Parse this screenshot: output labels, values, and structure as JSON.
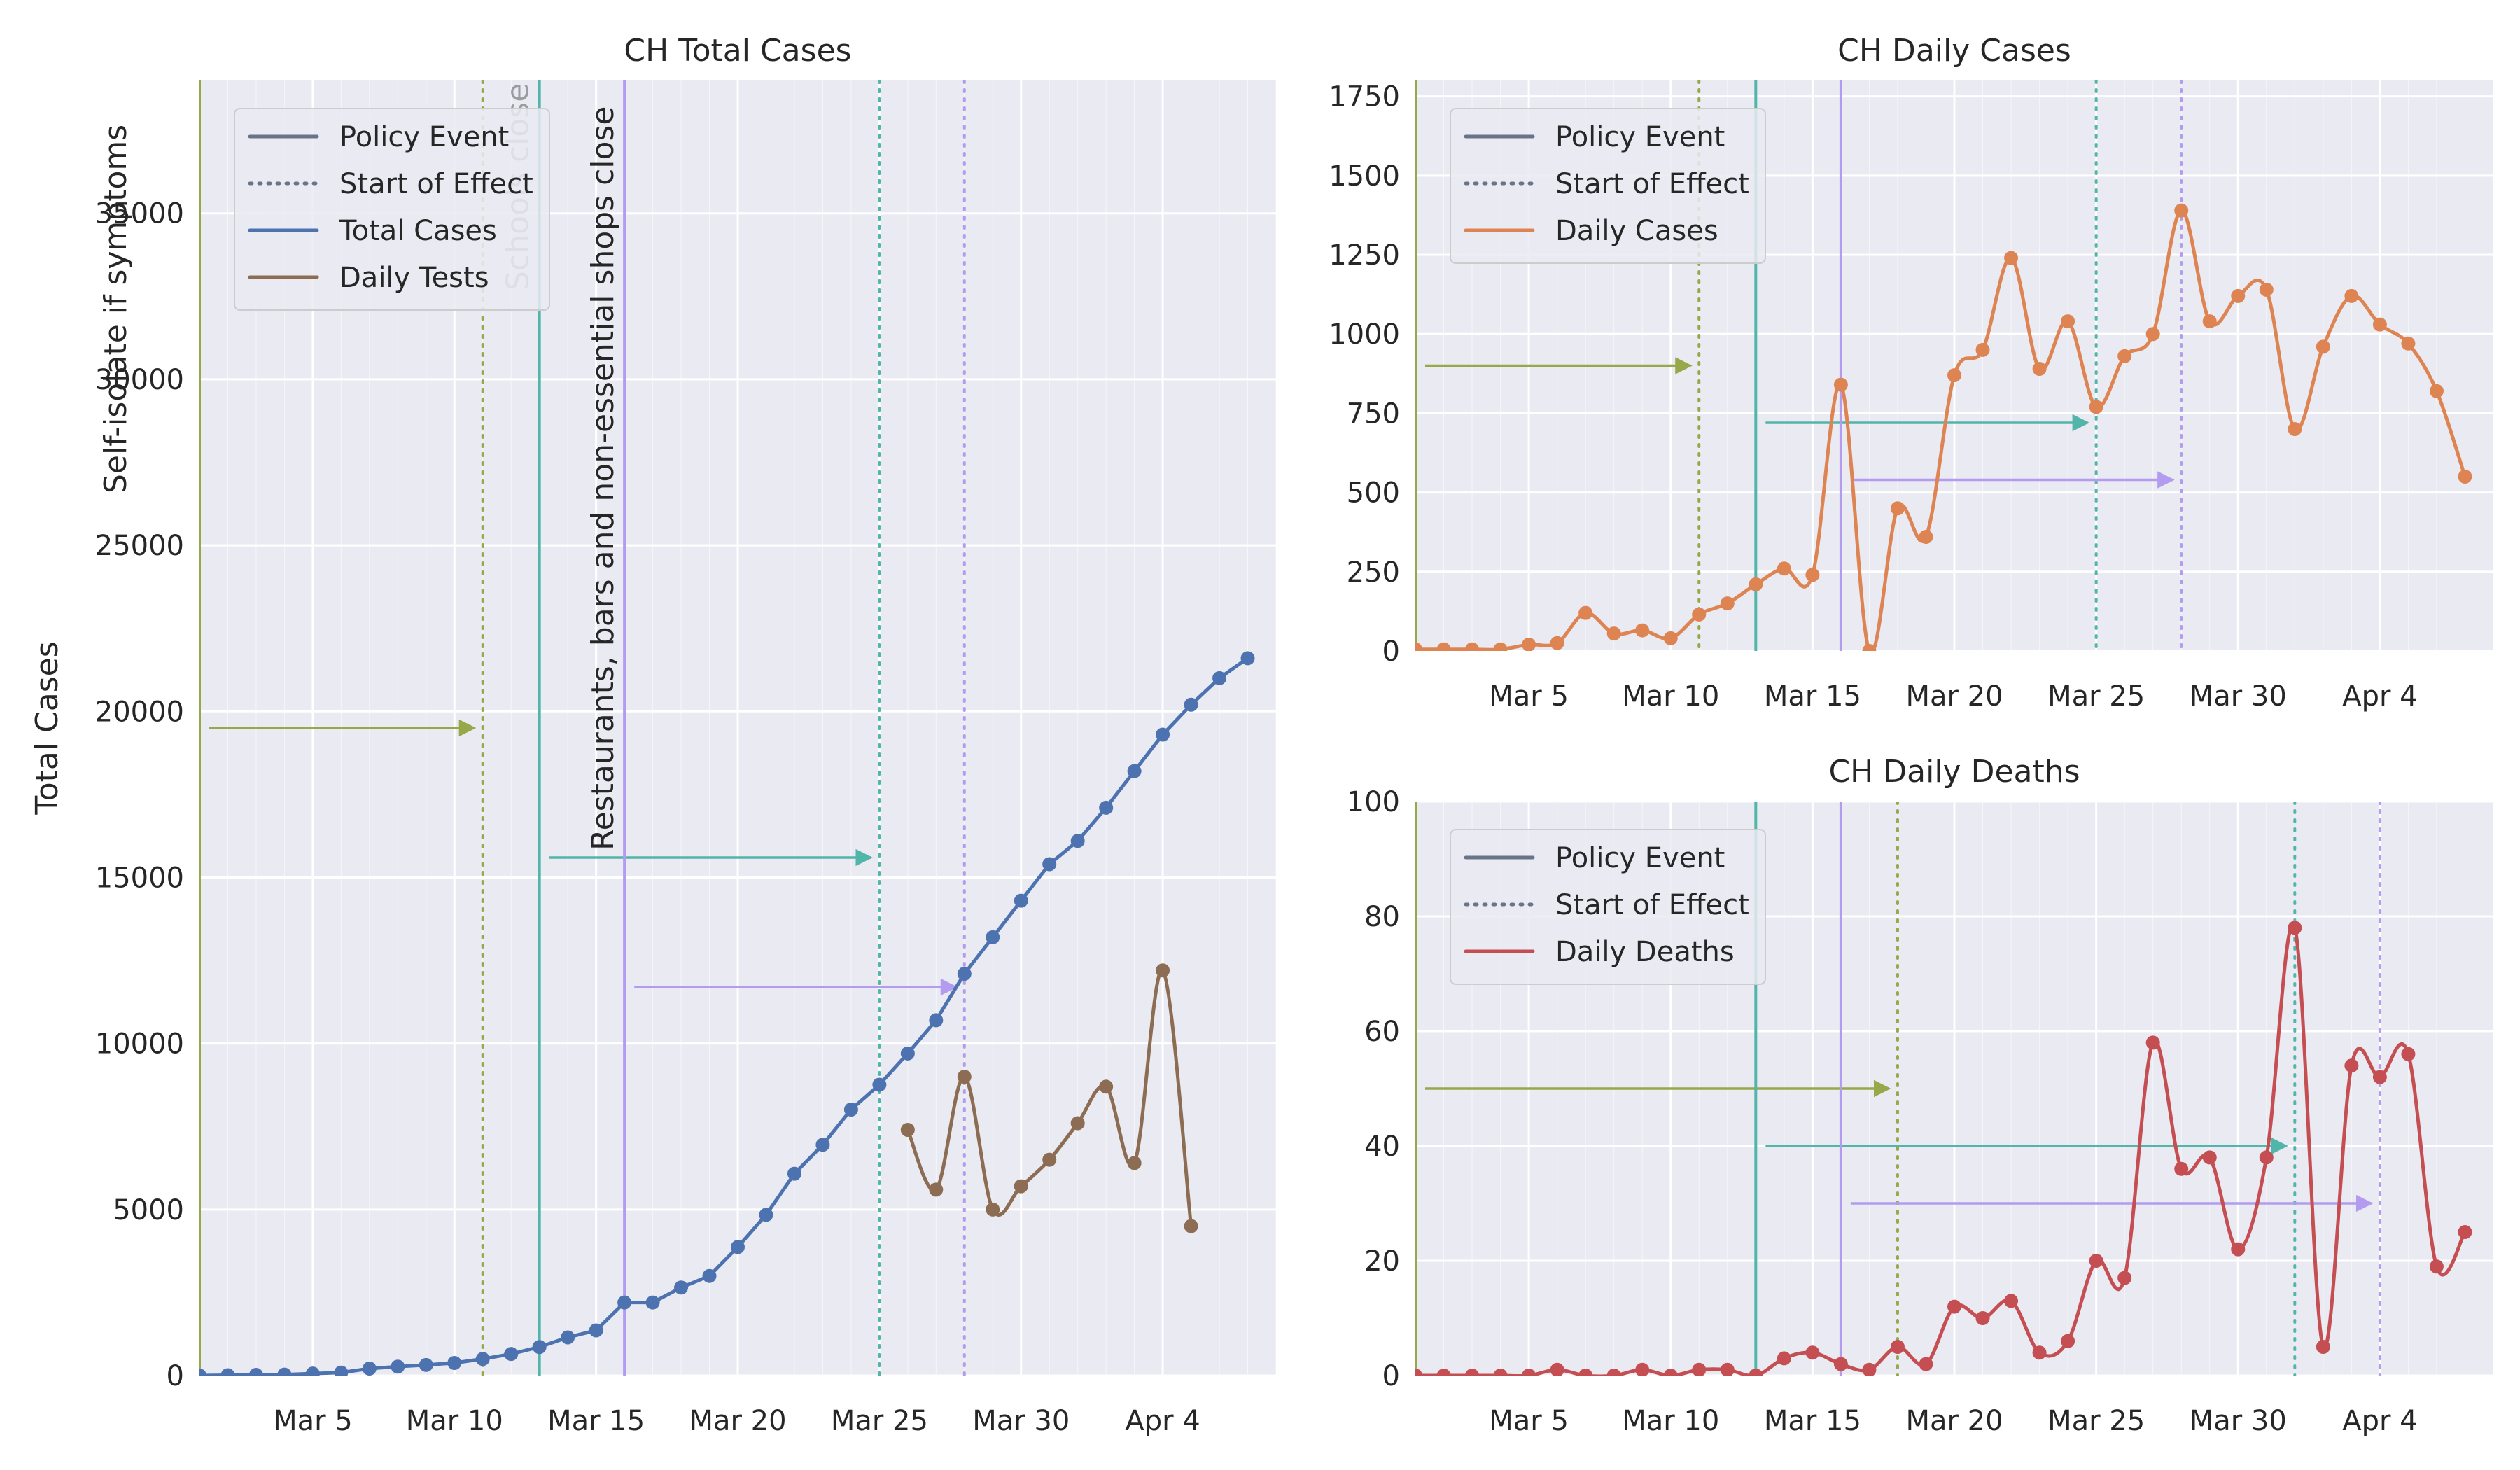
{
  "colors": {
    "policy_green": "#97a84b",
    "policy_teal": "#52b5aa",
    "policy_purple": "#b39cf0",
    "total_cases": "#4c72b0",
    "daily_tests": "#8c6d53",
    "daily_cases": "#dd8452",
    "daily_deaths": "#c44e52",
    "axes_bg": "#eaeaf2",
    "legend_gray": "#6a7489"
  },
  "chart_data": [
    {
      "type": "line",
      "title": "CH Total Cases",
      "ylabel": "Total Cases",
      "ylim": [
        0,
        39000
      ],
      "yticks": [
        0,
        5000,
        10000,
        15000,
        20000,
        25000,
        30000,
        35000
      ],
      "xrange": [
        "2020-03-01",
        "2020-04-08"
      ],
      "xticks": [
        "Mar 5",
        "Mar 10",
        "Mar 15",
        "Mar 20",
        "Mar 25",
        "Mar 30",
        "Apr 4"
      ],
      "legend": {
        "placement": "upper-left",
        "entries": [
          "Policy Event",
          "Start of Effect",
          "Total Cases",
          "Daily Tests"
        ]
      },
      "policy_events": [
        {
          "label": "Self-isolate if symptoms",
          "event_date": "2020-03-01",
          "effect_date": "2020-03-11",
          "color_key": "policy_green",
          "arrow_y": 19500
        },
        {
          "label": "Schools close",
          "event_date": "2020-03-13",
          "effect_date": "2020-03-25",
          "color_key": "policy_teal",
          "arrow_y": 15600
        },
        {
          "label": "Restaurants, bars and non-essential shops close",
          "event_date": "2020-03-16",
          "effect_date": "2020-03-28",
          "color_key": "policy_purple",
          "arrow_y": 11700
        }
      ],
      "series": [
        {
          "name": "Total Cases",
          "color_key": "total_cases",
          "x": [
            "2020-03-01",
            "2020-03-02",
            "2020-03-03",
            "2020-03-04",
            "2020-03-05",
            "2020-03-06",
            "2020-03-07",
            "2020-03-08",
            "2020-03-09",
            "2020-03-10",
            "2020-03-11",
            "2020-03-12",
            "2020-03-13",
            "2020-03-14",
            "2020-03-15",
            "2020-03-16",
            "2020-03-17",
            "2020-03-18",
            "2020-03-19",
            "2020-03-20",
            "2020-03-21",
            "2020-03-22",
            "2020-03-23",
            "2020-03-24",
            "2020-03-25",
            "2020-03-26",
            "2020-03-27",
            "2020-03-28",
            "2020-03-29",
            "2020-03-30",
            "2020-03-31",
            "2020-04-01",
            "2020-04-02",
            "2020-04-03",
            "2020-04-04",
            "2020-04-05",
            "2020-04-06",
            "2020-04-07"
          ],
          "values": [
            0,
            10,
            20,
            30,
            60,
            90,
            210,
            270,
            320,
            380,
            500,
            650,
            860,
            1150,
            1360,
            2200,
            2200,
            2650,
            3000,
            3870,
            4840,
            6080,
            6950,
            8010,
            8760,
            9700,
            10700,
            12100,
            13200,
            14300,
            15400,
            16100,
            17100,
            18200,
            19300,
            20200,
            21000,
            21600
          ]
        },
        {
          "name": "Daily Tests",
          "color_key": "daily_tests",
          "smooth": true,
          "x": [
            "2020-03-26",
            "2020-03-27",
            "2020-03-28",
            "2020-03-29",
            "2020-03-30",
            "2020-03-31",
            "2020-04-01",
            "2020-04-02",
            "2020-04-03",
            "2020-04-04",
            "2020-04-05"
          ],
          "values": [
            7400,
            5600,
            9000,
            5000,
            5700,
            6500,
            7600,
            8700,
            6400,
            12200,
            4500
          ]
        }
      ]
    },
    {
      "type": "line",
      "title": "CH Daily Cases",
      "ylabel": "",
      "ylim": [
        0,
        1800
      ],
      "yticks": [
        0,
        250,
        500,
        750,
        1000,
        1250,
        1500,
        1750
      ],
      "xrange": [
        "2020-03-01",
        "2020-04-08"
      ],
      "xticks": [
        "Mar 5",
        "Mar 10",
        "Mar 15",
        "Mar 20",
        "Mar 25",
        "Mar 30",
        "Apr 4"
      ],
      "legend": {
        "placement": "upper-left",
        "entries": [
          "Policy Event",
          "Start of Effect",
          "Daily Cases"
        ]
      },
      "policy_events": [
        {
          "event_date": "2020-03-01",
          "effect_date": "2020-03-11",
          "color_key": "policy_green",
          "arrow_y": 900
        },
        {
          "event_date": "2020-03-13",
          "effect_date": "2020-03-25",
          "color_key": "policy_teal",
          "arrow_y": 720
        },
        {
          "event_date": "2020-03-16",
          "effect_date": "2020-03-28",
          "color_key": "policy_purple",
          "arrow_y": 540
        }
      ],
      "series": [
        {
          "name": "Daily Cases",
          "color_key": "daily_cases",
          "smooth": true,
          "x": [
            "2020-03-01",
            "2020-03-02",
            "2020-03-03",
            "2020-03-04",
            "2020-03-05",
            "2020-03-06",
            "2020-03-07",
            "2020-03-08",
            "2020-03-09",
            "2020-03-10",
            "2020-03-11",
            "2020-03-12",
            "2020-03-13",
            "2020-03-14",
            "2020-03-15",
            "2020-03-16",
            "2020-03-17",
            "2020-03-18",
            "2020-03-19",
            "2020-03-20",
            "2020-03-21",
            "2020-03-22",
            "2020-03-23",
            "2020-03-24",
            "2020-03-25",
            "2020-03-26",
            "2020-03-27",
            "2020-03-28",
            "2020-03-29",
            "2020-03-30",
            "2020-03-31",
            "2020-04-01",
            "2020-04-02",
            "2020-04-03",
            "2020-04-04",
            "2020-04-05",
            "2020-04-06",
            "2020-04-07"
          ],
          "values": [
            5,
            5,
            5,
            5,
            20,
            25,
            120,
            55,
            65,
            40,
            115,
            150,
            210,
            260,
            240,
            840,
            0,
            450,
            360,
            870,
            950,
            1240,
            890,
            1040,
            770,
            930,
            1000,
            1390,
            1040,
            1120,
            1140,
            700,
            960,
            1120,
            1030,
            970,
            820,
            550
          ]
        }
      ]
    },
    {
      "type": "line",
      "title": "CH Daily Deaths",
      "ylabel": "",
      "ylim": [
        0,
        100
      ],
      "yticks": [
        0,
        20,
        40,
        60,
        80,
        100
      ],
      "xrange": [
        "2020-03-01",
        "2020-04-08"
      ],
      "xticks": [
        "Mar 5",
        "Mar 10",
        "Mar 15",
        "Mar 20",
        "Mar 25",
        "Mar 30",
        "Apr 4"
      ],
      "legend": {
        "placement": "upper-left",
        "entries": [
          "Policy Event",
          "Start of Effect",
          "Daily Deaths"
        ]
      },
      "policy_events": [
        {
          "event_date": "2020-03-01",
          "effect_date": "2020-03-18",
          "color_key": "policy_green",
          "arrow_y": 50
        },
        {
          "event_date": "2020-03-13",
          "effect_date": "2020-04-01",
          "color_key": "policy_teal",
          "arrow_y": 40
        },
        {
          "event_date": "2020-03-16",
          "effect_date": "2020-04-04",
          "color_key": "policy_purple",
          "arrow_y": 30
        }
      ],
      "series": [
        {
          "name": "Daily Deaths",
          "color_key": "daily_deaths",
          "smooth": true,
          "x": [
            "2020-03-01",
            "2020-03-02",
            "2020-03-03",
            "2020-03-04",
            "2020-03-05",
            "2020-03-06",
            "2020-03-07",
            "2020-03-08",
            "2020-03-09",
            "2020-03-10",
            "2020-03-11",
            "2020-03-12",
            "2020-03-13",
            "2020-03-14",
            "2020-03-15",
            "2020-03-16",
            "2020-03-17",
            "2020-03-18",
            "2020-03-19",
            "2020-03-20",
            "2020-03-21",
            "2020-03-22",
            "2020-03-23",
            "2020-03-24",
            "2020-03-25",
            "2020-03-26",
            "2020-03-27",
            "2020-03-28",
            "2020-03-29",
            "2020-03-30",
            "2020-03-31",
            "2020-04-01",
            "2020-04-02",
            "2020-04-03",
            "2020-04-04",
            "2020-04-05",
            "2020-04-06",
            "2020-04-07"
          ],
          "values": [
            0,
            0,
            0,
            0,
            0,
            1,
            0,
            0,
            1,
            0,
            1,
            1,
            0,
            3,
            4,
            2,
            1,
            5,
            2,
            12,
            10,
            13,
            4,
            6,
            20,
            17,
            58,
            36,
            38,
            22,
            38,
            78,
            5,
            54,
            52,
            56,
            19,
            25
          ]
        }
      ]
    }
  ]
}
